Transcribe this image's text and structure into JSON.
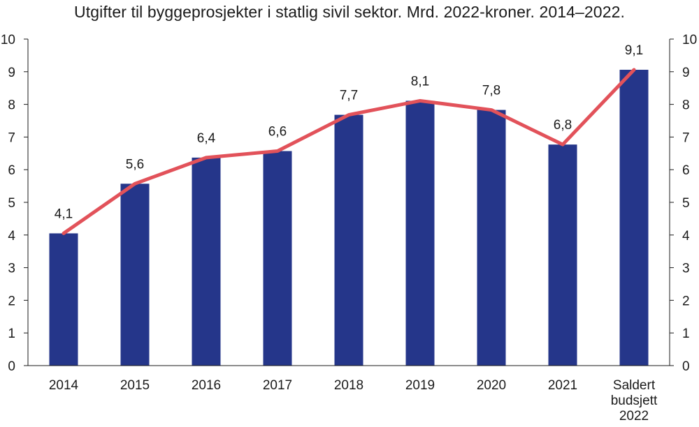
{
  "chart_data": {
    "type": "bar",
    "title": "Utgifter til byggeprosjekter i statlig sivil sektor. Mrd. 2022-kroner. 2014–2022.",
    "categories": [
      [
        "2014"
      ],
      [
        "2015"
      ],
      [
        "2016"
      ],
      [
        "2017"
      ],
      [
        "2018"
      ],
      [
        "2019"
      ],
      [
        "2020"
      ],
      [
        "2021"
      ],
      [
        "Saldert",
        "budsjett",
        "2022"
      ]
    ],
    "series": [
      {
        "type": "bar",
        "values": [
          4.05,
          5.57,
          6.37,
          6.57,
          7.68,
          8.11,
          7.83,
          6.77,
          9.06
        ]
      },
      {
        "type": "line",
        "values": [
          4.05,
          5.57,
          6.37,
          6.57,
          7.68,
          8.11,
          7.83,
          6.77,
          9.06
        ]
      }
    ],
    "data_labels": [
      "4,1",
      "5,6",
      "6,4",
      "6,6",
      "7,7",
      "8,1",
      "7,8",
      "6,8",
      "9,1"
    ],
    "ylim": [
      0,
      10
    ],
    "y_ticks": [
      "0",
      "1",
      "2",
      "3",
      "4",
      "5",
      "6",
      "7",
      "8",
      "9",
      "10"
    ],
    "y2_ticks": [
      "0",
      "1",
      "2",
      "3",
      "4",
      "5",
      "6",
      "7",
      "8",
      "9",
      "10"
    ],
    "xlabel": "",
    "ylabel": "",
    "grid": false,
    "colors": {
      "bar": "#25368a",
      "line": "#e2525a",
      "axis": "#1a1a1a"
    }
  }
}
